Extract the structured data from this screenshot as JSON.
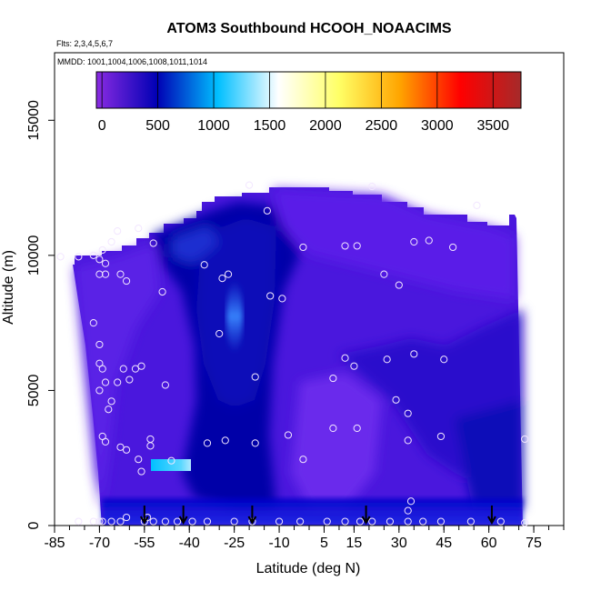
{
  "chart_data": {
    "type": "heatmap",
    "title": "ATOM3 Southbound HCOOH_NOAACIMS",
    "subtitle_flights": "Flts: 2,3,4,5,6,7",
    "subtitle_dates": "MMDD: 1001,1004,1006,1008,1011,1014",
    "xlabel": "Latitude (deg N)",
    "ylabel": "Altitude (m)",
    "xlim": [
      -85,
      85
    ],
    "ylim": [
      0,
      17500
    ],
    "x_ticks": [
      -85,
      -70,
      -55,
      -40,
      -25,
      -10,
      5,
      15,
      30,
      45,
      60,
      75
    ],
    "y_ticks": [
      0,
      5000,
      10000,
      15000
    ],
    "colorbar": {
      "range": [
        -50,
        3750
      ],
      "ticks": [
        0,
        500,
        1000,
        1500,
        2000,
        2500,
        3000,
        3500
      ],
      "colors": [
        "#8a2be2",
        "#0000b4",
        "#00bfff",
        "#ffffff",
        "#ffff66",
        "#ffa500",
        "#ff0000",
        "#a52a2a"
      ]
    },
    "grid": false,
    "profile_markers_lat": [
      -55,
      -42,
      -19,
      19,
      61
    ],
    "sample_points": [
      [
        -83,
        9950
      ],
      [
        -77,
        9950
      ],
      [
        -72,
        10000
      ],
      [
        -70,
        9850
      ],
      [
        -69,
        10200
      ],
      [
        -70,
        9300
      ],
      [
        -68,
        9700
      ],
      [
        -68,
        9300
      ],
      [
        -66,
        10500
      ],
      [
        -64,
        10900
      ],
      [
        -63,
        9300
      ],
      [
        -61,
        9050
      ],
      [
        -57,
        11000
      ],
      [
        -52,
        10450
      ],
      [
        -49,
        8650
      ],
      [
        -35,
        9650
      ],
      [
        -29,
        9150
      ],
      [
        -27,
        9300
      ],
      [
        -20,
        12600
      ],
      [
        -14,
        11650
      ],
      [
        -13,
        8500
      ],
      [
        -9,
        8400
      ],
      [
        -2,
        10300
      ],
      [
        12,
        10350
      ],
      [
        16,
        10350
      ],
      [
        21,
        12550
      ],
      [
        25,
        9300
      ],
      [
        30,
        8900
      ],
      [
        35,
        10500
      ],
      [
        40,
        10550
      ],
      [
        48,
        10300
      ],
      [
        56,
        11850
      ],
      [
        -72,
        7500
      ],
      [
        -70,
        6700
      ],
      [
        -70,
        6000
      ],
      [
        -69,
        5800
      ],
      [
        -68,
        5300
      ],
      [
        -70,
        5000
      ],
      [
        -66,
        4600
      ],
      [
        -67,
        4300
      ],
      [
        -64,
        5300
      ],
      [
        -62,
        5800
      ],
      [
        -60,
        5400
      ],
      [
        -58,
        5800
      ],
      [
        -56,
        5900
      ],
      [
        -48,
        5200
      ],
      [
        -30,
        7100
      ],
      [
        -18,
        5500
      ],
      [
        12,
        6200
      ],
      [
        15,
        5900
      ],
      [
        26,
        6150
      ],
      [
        29,
        4650
      ],
      [
        33,
        4150
      ],
      [
        35,
        6350
      ],
      [
        45,
        6150
      ],
      [
        8,
        5450
      ],
      [
        -69,
        3300
      ],
      [
        -68,
        3100
      ],
      [
        -63,
        2900
      ],
      [
        -61,
        2800
      ],
      [
        -57,
        2450
      ],
      [
        -56,
        2000
      ],
      [
        -53,
        3200
      ],
      [
        -53,
        2950
      ],
      [
        -46,
        2400
      ],
      [
        -34,
        3050
      ],
      [
        -28,
        3150
      ],
      [
        -18,
        3050
      ],
      [
        -7,
        3350
      ],
      [
        -2,
        2450
      ],
      [
        8,
        3600
      ],
      [
        16,
        3600
      ],
      [
        33,
        3150
      ],
      [
        44,
        3300
      ],
      [
        34,
        900
      ],
      [
        33,
        550
      ],
      [
        -77,
        150
      ],
      [
        -72,
        150
      ],
      [
        -70,
        150
      ],
      [
        -69,
        150
      ],
      [
        -66,
        150
      ],
      [
        -63,
        150
      ],
      [
        -61,
        300
      ],
      [
        -55,
        150
      ],
      [
        -54,
        300
      ],
      [
        -52,
        150
      ],
      [
        -48,
        150
      ],
      [
        -44,
        150
      ],
      [
        -39,
        150
      ],
      [
        -34,
        150
      ],
      [
        -25,
        150
      ],
      [
        -19,
        150
      ],
      [
        -10,
        150
      ],
      [
        -3,
        150
      ],
      [
        6,
        150
      ],
      [
        12,
        150
      ],
      [
        17,
        150
      ],
      [
        21,
        150
      ],
      [
        27,
        150
      ],
      [
        33,
        150
      ],
      [
        38,
        150
      ],
      [
        44,
        150
      ],
      [
        54,
        150
      ],
      [
        64,
        150
      ],
      [
        72,
        3200
      ],
      [
        72,
        100
      ]
    ]
  }
}
